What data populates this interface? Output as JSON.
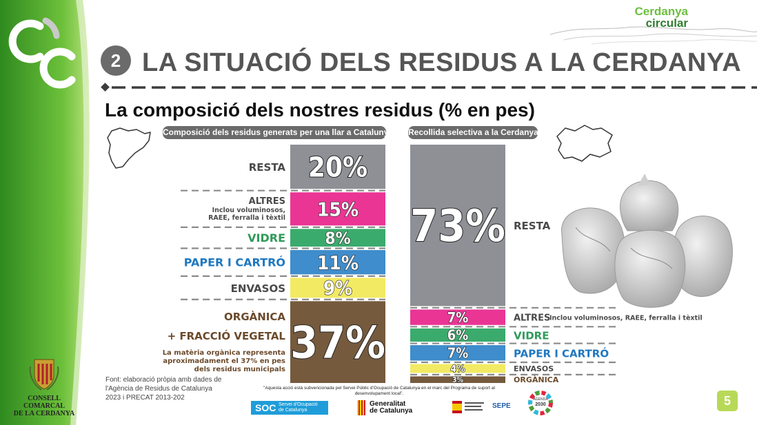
{
  "header": {
    "section_number": "2",
    "title": "LA SITUACIÓ DELS RESIDUS A LA CERDANYA",
    "brand_line1": "Cerdanya",
    "brand_line2": "circular"
  },
  "subtitle": "La composició dels nostres residus (% en pes)",
  "chart_data": [
    {
      "type": "bar",
      "stacked": true,
      "title": "Composició dels residus generats per una llar a Catalunya",
      "unit": "%",
      "categories": [
        "RESTA",
        "ALTRES",
        "VIDRE",
        "PAPER I CARTRÓ",
        "ENVASOS",
        "ORGÀNICA + FRACCIÓ VEGETAL"
      ],
      "values": [
        20,
        15,
        8,
        11,
        9,
        37
      ],
      "value_labels": [
        "20%",
        "15%",
        "8%",
        "11%",
        "9%",
        "37%"
      ],
      "category_labels": {
        "resta": "RESTA",
        "altres": "ALTRES",
        "altres_note": "Inclou voluminosos, RAEE, ferralla i tèxtil",
        "vidre": "VIDRE",
        "paper": "PAPER I CARTRÓ",
        "envasos": "ENVASOS",
        "organica1": "ORGÀNICA",
        "organica2": "+ FRACCIÓ VEGETAL",
        "organica_note": "La matèria orgànica representa aproximadament el 37% en pes dels residus municipals"
      },
      "colors": [
        "#8e9096",
        "#ea3595",
        "#3aab6c",
        "#3f8dcc",
        "#f2ea63",
        "#765a3d"
      ]
    },
    {
      "type": "bar",
      "stacked": true,
      "title": "Recollida selectiva a la Cerdanya",
      "unit": "%",
      "categories": [
        "RESTA",
        "ALTRES",
        "VIDRE",
        "PAPER I CARTRÓ",
        "ENVASOS",
        "ORGÀNICA"
      ],
      "values": [
        73,
        7,
        6,
        7,
        4,
        3
      ],
      "value_labels": [
        "73%",
        "7%",
        "6%",
        "7%",
        "4%",
        "3%"
      ],
      "category_labels": {
        "resta": "RESTA",
        "altres": "ALTRES",
        "altres_note": "Inclou voluminosos, RAEE, ferralla i tèxtil",
        "vidre": "VIDRE",
        "paper": "PAPER I CARTRÓ",
        "envasos": "ENVASOS",
        "organica": "ORGÀNICA"
      },
      "colors": [
        "#8e9096",
        "#ea3595",
        "#3aab6c",
        "#3f8dcc",
        "#f2ea63",
        "#765a3d"
      ]
    }
  ],
  "label_colors": {
    "gray": "#4a4a4a",
    "vidre": "#2f9a5a",
    "paper": "#1f78c1",
    "organica": "#6b4a2b"
  },
  "footer": {
    "source": "Font: elaboració pròpia amb dades de l'Agència de Residus de Catalunya 2023 i PRECAT 2013-202",
    "council_line1": "CONSELL COMARCAL",
    "council_line2": "DE LA CERDANYA",
    "funding_note": "\"Aquesta acció està subvencionada pel Servei Públic d'Ocupació de Catalunya en el marc del Programa de suport al desenvolupament local\".",
    "soc_label": "SOC",
    "soc_sub1": "Servei d'Ocupació",
    "soc_sub2": "de Catalunya",
    "gen_line1": "Generalitat",
    "gen_line2": "de Catalunya",
    "sepe_label": "SEPE",
    "agenda_line1": "AGENDA",
    "agenda_line2": "2030",
    "page_number": "5"
  },
  "icons": [
    "recycle-cc-icon",
    "catalonia-map-icon",
    "cerdanya-map-icon",
    "garbage-bags-image",
    "council-shield-icon"
  ]
}
